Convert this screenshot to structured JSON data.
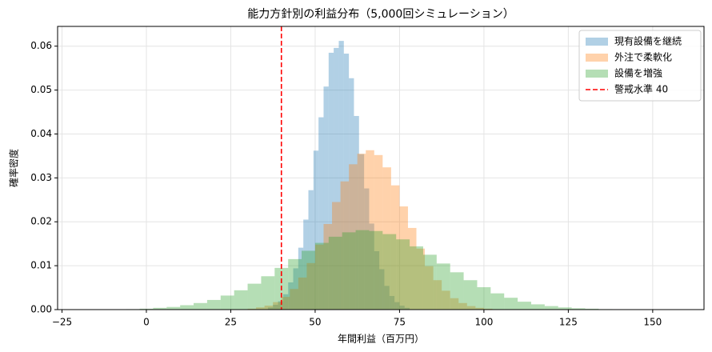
{
  "chart_data": {
    "type": "histogram",
    "title": "能力方針別の利益分布（5,000回シミュレーション）",
    "xlabel": "年間利益（百万円）",
    "ylabel": "確率密度",
    "xlim": [
      -26.3,
      165.2
    ],
    "ylim": [
      0,
      0.0645
    ],
    "xticks": [
      {
        "value": -25,
        "label": "−25"
      },
      0,
      25,
      50,
      75,
      100,
      125,
      150
    ],
    "yticks": [
      {
        "value": 0,
        "label": "0.00"
      },
      {
        "value": 0.01,
        "label": "0.01"
      },
      {
        "value": 0.02,
        "label": "0.02"
      },
      {
        "value": 0.03,
        "label": "0.03"
      },
      {
        "value": 0.04,
        "label": "0.04"
      },
      {
        "value": 0.05,
        "label": "0.05"
      },
      {
        "value": 0.06,
        "label": "0.06"
      }
    ],
    "grid": true,
    "legend": "upper right",
    "opacity": 0.35,
    "series": [
      {
        "name": "現有設備を継続",
        "color": "#1f77b4",
        "bins": [
          36,
          37.5,
          39,
          40.5,
          42,
          43.5,
          45,
          46.5,
          48,
          49.5,
          51,
          52.5,
          54,
          55.5,
          57,
          58.5,
          60,
          61.5,
          63,
          64.5,
          66,
          67.5,
          69,
          70.5,
          72,
          73.5,
          75,
          76.5,
          78
        ],
        "values": [
          0.0005,
          0.0011,
          0.0019,
          0.0035,
          0.0062,
          0.0094,
          0.0141,
          0.0205,
          0.0272,
          0.0362,
          0.0438,
          0.0508,
          0.0585,
          0.0596,
          0.0612,
          0.0583,
          0.0527,
          0.0441,
          0.0354,
          0.0276,
          0.0196,
          0.0133,
          0.0092,
          0.0054,
          0.0031,
          0.0017,
          0.0009,
          0.0004
        ]
      },
      {
        "name": "外注で柔軟化",
        "color": "#ff7f0e",
        "bins": [
          27.5,
          30,
          32.5,
          35,
          37.5,
          40,
          42.5,
          45,
          47.5,
          50,
          52.5,
          55,
          57.5,
          60,
          62.5,
          65,
          67.5,
          70,
          72.5,
          75,
          77.5,
          80,
          82.5,
          85,
          87.5,
          90,
          92.5,
          95,
          97.5,
          100,
          102.5,
          105
        ],
        "values": [
          0.0001,
          0.0002,
          0.0005,
          0.0009,
          0.0017,
          0.0029,
          0.0047,
          0.0073,
          0.0106,
          0.0148,
          0.0195,
          0.0245,
          0.0292,
          0.0331,
          0.0355,
          0.0363,
          0.0352,
          0.0324,
          0.0283,
          0.0235,
          0.0186,
          0.0139,
          0.0099,
          0.0067,
          0.0043,
          0.0026,
          0.0015,
          0.0008,
          0.0004,
          0.0002,
          0.0001
        ]
      },
      {
        "name": "設備を増強",
        "color": "#2ca02c",
        "bins": [
          -6,
          -2,
          2,
          6,
          10,
          14,
          18,
          22,
          26,
          30,
          34,
          38,
          42,
          46,
          50,
          54,
          58,
          62,
          66,
          70,
          74,
          78,
          82,
          86,
          90,
          94,
          98,
          102,
          106,
          110,
          114,
          118,
          122,
          126,
          130,
          134,
          138
        ],
        "values": [
          0.0001,
          0.0002,
          0.0004,
          0.0006,
          0.001,
          0.0015,
          0.0022,
          0.0032,
          0.0044,
          0.0059,
          0.0076,
          0.0095,
          0.0115,
          0.0134,
          0.0152,
          0.0166,
          0.0176,
          0.0181,
          0.0179,
          0.0172,
          0.016,
          0.0144,
          0.0125,
          0.0105,
          0.0085,
          0.0067,
          0.0051,
          0.0037,
          0.0027,
          0.0018,
          0.0012,
          0.0008,
          0.0005,
          0.0003,
          0.0002,
          0.0001
        ]
      }
    ],
    "threshold": {
      "value": 40,
      "label": "警戒水準 40",
      "color": "#ff0000"
    }
  }
}
